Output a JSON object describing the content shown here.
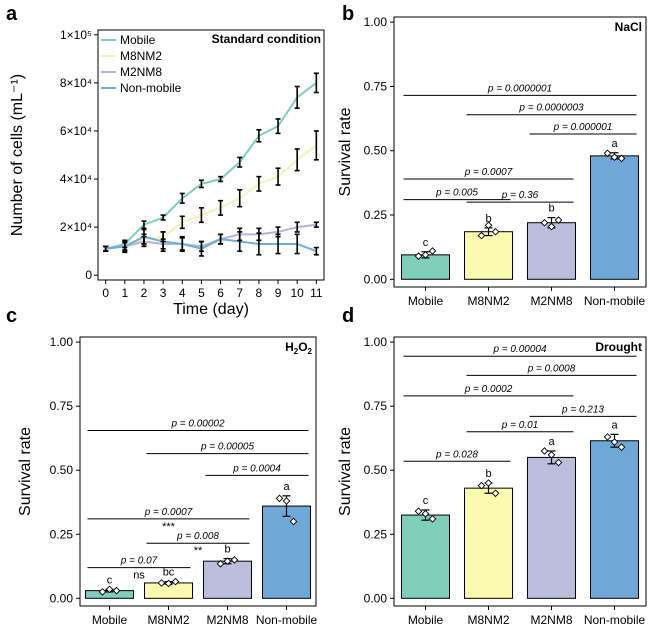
{
  "chart_data": [
    {
      "panel": "a",
      "type": "line",
      "tag": "Standard condition",
      "xlabel": "Time (day)",
      "ylabel": "Number of cells (mL⁻¹)",
      "x": [
        0,
        1,
        2,
        3,
        4,
        5,
        6,
        7,
        8,
        9,
        10,
        11
      ],
      "xlim": [
        -0.4,
        11.4
      ],
      "ylim": [
        -2000,
        102000
      ],
      "y_tick_labels": [
        {
          "value": 0,
          "text": "0"
        },
        {
          "value": 20000,
          "text": "2×10⁴"
        },
        {
          "value": 40000,
          "text": "4×10⁴"
        },
        {
          "value": 60000,
          "text": "6×10⁴"
        },
        {
          "value": 80000,
          "text": "8×10⁴"
        },
        {
          "value": 100000,
          "text": "1×10⁵"
        }
      ],
      "x_tick_labels": [
        "0",
        "1",
        "2",
        "3",
        "4",
        "5",
        "6",
        "7",
        "8",
        "9",
        "10",
        "11"
      ],
      "legend_position": "top-left",
      "series": [
        {
          "name": "Mobile",
          "color": "#7fcdbb",
          "values": [
            11000,
            13000,
            21000,
            24000,
            32000,
            38000,
            40000,
            47000,
            58000,
            62000,
            74000,
            80000
          ],
          "errors": [
            1000,
            1500,
            1500,
            1000,
            2000,
            1500,
            1000,
            2000,
            2500,
            3000,
            4500,
            4000
          ]
        },
        {
          "name": "M8NM2",
          "color": "#f3f3b5",
          "values": [
            11000,
            12000,
            15000,
            16000,
            22000,
            25000,
            28000,
            32000,
            38000,
            41000,
            48000,
            54000
          ],
          "errors": [
            1000,
            1500,
            2000,
            2000,
            2500,
            3000,
            3000,
            3500,
            3000,
            3500,
            4500,
            6000
          ]
        },
        {
          "name": "M2NM8",
          "color": "#b7b3d6",
          "values": [
            11000,
            12000,
            14000,
            13000,
            13000,
            12000,
            15000,
            17000,
            17000,
            18000,
            20000,
            21000
          ],
          "errors": [
            1000,
            2000,
            2000,
            2000,
            2500,
            2000,
            2000,
            2500,
            2500,
            2000,
            2000,
            1000
          ]
        },
        {
          "name": "Non-mobile",
          "color": "#6baed6",
          "values": [
            11000,
            12000,
            16000,
            14000,
            13000,
            11000,
            15000,
            14000,
            13000,
            13000,
            13000,
            10000
          ],
          "errors": [
            1000,
            2500,
            3000,
            4000,
            3000,
            3000,
            2000,
            4000,
            4500,
            4000,
            4000,
            1500
          ]
        }
      ]
    },
    {
      "panel": "b",
      "type": "bar",
      "tag": "NaCl",
      "ylabel": "Survival rate",
      "ylim": [
        -0.03,
        1.02
      ],
      "y_ticks": [
        "0.00",
        "0.25",
        "0.50",
        "0.75",
        "1.00"
      ],
      "categories": [
        "Mobile",
        "M8NM2",
        "M2NM8",
        "Non-mobile"
      ],
      "colors": [
        "#7fcdbb",
        "#fbfbb0",
        "#bcbddc",
        "#6fa8d6"
      ],
      "values": [
        0.095,
        0.185,
        0.22,
        0.48
      ],
      "errors": [
        0.012,
        0.015,
        0.02,
        0.012
      ],
      "points": [
        [
          0.09,
          0.11,
          0.095
        ],
        [
          0.17,
          0.185,
          0.21
        ],
        [
          0.22,
          0.23,
          0.205
        ],
        [
          0.49,
          0.47,
          0.475
        ]
      ],
      "letters": [
        "c",
        "b",
        "b",
        "a"
      ],
      "comparisons": [
        {
          "from": 0,
          "to": 3,
          "label": "p = 0.0000001",
          "level": 0.715
        },
        {
          "from": 1,
          "to": 3,
          "label": "p = 0.0000003",
          "level": 0.64
        },
        {
          "from": 2,
          "to": 3,
          "label": "p = 0.000001",
          "level": 0.565
        },
        {
          "from": 0,
          "to": 2,
          "label": "p = 0.0007",
          "level": 0.39
        },
        {
          "from": 0,
          "to": 1,
          "label": "p = 0.005",
          "level": 0.31
        },
        {
          "from": 1,
          "to": 2,
          "label": "p = 0.36",
          "level": 0.3
        }
      ]
    },
    {
      "panel": "c",
      "type": "bar",
      "tag": "H2O2",
      "ylabel": "Survival rate",
      "ylim": [
        -0.03,
        1.02
      ],
      "y_ticks": [
        "0.00",
        "0.25",
        "0.50",
        "0.75",
        "1.00"
      ],
      "categories": [
        "Mobile",
        "M8NM2",
        "M2NM8",
        "Non-mobile"
      ],
      "colors": [
        "#7fcdbb",
        "#fbfbb0",
        "#bcbddc",
        "#6fa8d6"
      ],
      "values": [
        0.03,
        0.06,
        0.145,
        0.36
      ],
      "errors": [
        0.005,
        0.005,
        0.01,
        0.04
      ],
      "points": [
        [
          0.025,
          0.03,
          0.035
        ],
        [
          0.06,
          0.065,
          0.058
        ],
        [
          0.135,
          0.15,
          0.145
        ],
        [
          0.39,
          0.3,
          0.38
        ]
      ],
      "letters": [
        "c",
        "bc",
        "b",
        "a"
      ],
      "comparisons": [
        {
          "from": 0,
          "to": 3,
          "label": "p = 0.00002",
          "level": 0.655
        },
        {
          "from": 1,
          "to": 3,
          "label": "p = 0.00005",
          "level": 0.565
        },
        {
          "from": 2,
          "to": 3,
          "label": "p = 0.0004",
          "level": 0.48
        },
        {
          "from": 0,
          "to": 2,
          "label": "p = 0.0007",
          "level": 0.31,
          "mark": "***"
        },
        {
          "from": 1,
          "to": 2,
          "label": "p = 0.008",
          "level": 0.215,
          "mark": "**"
        },
        {
          "from": 0,
          "to": 1,
          "label": "p = 0.07",
          "level": 0.12,
          "mark": "ns"
        }
      ]
    },
    {
      "panel": "d",
      "type": "bar",
      "tag": "Drought",
      "ylabel": "Survival rate",
      "ylim": [
        -0.03,
        1.02
      ],
      "y_ticks": [
        "0.00",
        "0.25",
        "0.50",
        "0.75",
        "1.00"
      ],
      "categories": [
        "Mobile",
        "M8NM2",
        "M2NM8",
        "Non-mobile"
      ],
      "colors": [
        "#7fcdbb",
        "#fbfbb0",
        "#bcbddc",
        "#6fa8d6"
      ],
      "values": [
        0.325,
        0.43,
        0.55,
        0.615
      ],
      "errors": [
        0.02,
        0.02,
        0.025,
        0.025
      ],
      "points": [
        [
          0.34,
          0.31,
          0.33
        ],
        [
          0.44,
          0.41,
          0.45
        ],
        [
          0.575,
          0.53,
          0.56
        ],
        [
          0.63,
          0.59,
          0.61
        ]
      ],
      "letters": [
        "c",
        "b",
        "a",
        "a"
      ],
      "comparisons": [
        {
          "from": 0,
          "to": 3,
          "label": "p = 0.00004",
          "level": 0.945
        },
        {
          "from": 1,
          "to": 3,
          "label": "p = 0.0008",
          "level": 0.87
        },
        {
          "from": 0,
          "to": 2,
          "label": "p = 0.0002",
          "level": 0.79
        },
        {
          "from": 2,
          "to": 3,
          "label": "p = 0.213",
          "level": 0.71
        },
        {
          "from": 1,
          "to": 2,
          "label": "p = 0.01",
          "level": 0.65
        },
        {
          "from": 0,
          "to": 1,
          "label": "p = 0.028",
          "level": 0.535
        }
      ]
    }
  ]
}
